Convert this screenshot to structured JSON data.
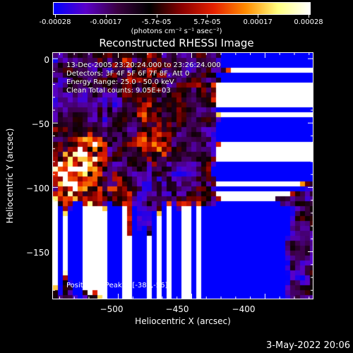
{
  "colorbar": {
    "tick_labels": [
      "-0.00028",
      "-0.00017",
      "-5.7e-05",
      "5.7e-05",
      "0.00017",
      "0.00028"
    ],
    "units": "(photons cm⁻² s⁻¹ asec⁻²)",
    "colors": [
      "#0000ff",
      "#5a00c8",
      "#3a0040",
      "#000000",
      "#8a0000",
      "#e52000",
      "#ff8c00",
      "#ffff80",
      "#ffffff"
    ]
  },
  "title": "Reconstructed RHESSI Image",
  "annotations": [
    "13-Dec-2005 23:20:24.000 to 23:26:24.000",
    "Detectors: 3F 4F 5F 6F 7F 8F, Att 0",
    "Energy Range: 25.0 - 50.0 keV",
    "Clean     Total counts: 9.05E+03"
  ],
  "peak_text": "Position of Peak = [-387,-56]",
  "chart_data": {
    "type": "heatmap",
    "title": "Reconstructed RHESSI Image",
    "xlabel": "Heliocentric X (arcsec)",
    "ylabel": "Heliocentric Y (arcsec)",
    "xlim": [
      -545,
      -367
    ],
    "ylim": [
      -187,
      5
    ],
    "x_ticks": [
      -500,
      -450,
      -400
    ],
    "y_ticks": [
      0,
      -50,
      -100,
      -150
    ],
    "x_tick_labels": [
      "−500",
      "−450",
      "−400"
    ],
    "y_tick_labels": [
      "0",
      "−50",
      "−100",
      "−150"
    ],
    "colorbar_range": [
      -0.00028,
      0.00028
    ],
    "peak_position": [
      -387,
      -56
    ]
  },
  "datestamp": "3-May-2022 20:06"
}
